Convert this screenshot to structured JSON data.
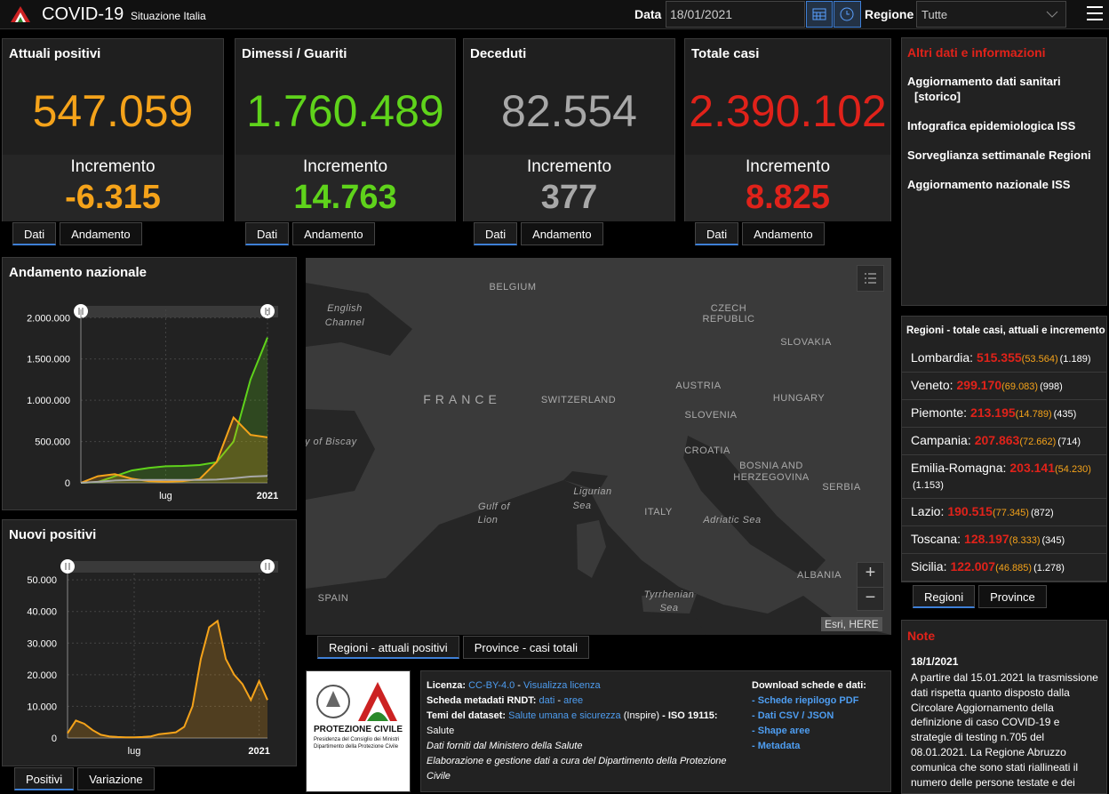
{
  "header": {
    "title": "COVID-19",
    "subtitle": "Situazione Italia",
    "date_label": "Data",
    "date": "18/01/2021",
    "region_label": "Regione",
    "region": "Tutte"
  },
  "cards": [
    {
      "title": "Attuali positivi",
      "value": "547.059",
      "increment_label": "Incremento",
      "increment": "-6.315",
      "color": "#f5a31a",
      "tabs": [
        "Dati",
        "Andamento"
      ]
    },
    {
      "title": "Dimessi / Guariti",
      "value": "1.760.489",
      "increment_label": "Incremento",
      "increment": "14.763",
      "color": "#5fd31b",
      "tabs": [
        "Dati",
        "Andamento"
      ]
    },
    {
      "title": "Deceduti",
      "value": "82.554",
      "increment_label": "Incremento",
      "increment": "377",
      "color": "#a8a8a8",
      "tabs": [
        "Dati",
        "Andamento"
      ]
    },
    {
      "title": "Totale casi",
      "value": "2.390.102",
      "increment_label": "Incremento",
      "increment": "8.825",
      "color": "#e0221a",
      "tabs": [
        "Dati",
        "Andamento"
      ]
    }
  ],
  "info": {
    "title": "Altri dati e informazioni",
    "links": [
      "Aggiornamento dati sanitari [storico]",
      "Infografica epidemiologica ISS",
      "Sorveglianza settimanale Regioni",
      "Aggiornamento nazionale ISS"
    ]
  },
  "chart_data": [
    {
      "type": "area",
      "title": "Andamento nazionale",
      "categories": [
        null,
        null,
        null,
        null,
        null,
        "lug",
        null,
        null,
        null,
        null,
        null,
        "2021"
      ],
      "series": [
        {
          "name": "Dimessi / Guariti",
          "color": "#5fd31b",
          "values": [
            0,
            10000,
            80000,
            150000,
            180000,
            200000,
            205000,
            215000,
            250000,
            500000,
            1250000,
            1760000
          ]
        },
        {
          "name": "Attuali positivi",
          "color": "#f5a31a",
          "values": [
            0,
            80000,
            105000,
            50000,
            20000,
            13000,
            20000,
            45000,
            250000,
            790000,
            580000,
            550000
          ]
        },
        {
          "name": "Deceduti",
          "color": "#a8a8a8",
          "values": [
            0,
            12000,
            28000,
            33000,
            34700,
            35100,
            35500,
            36000,
            39000,
            55000,
            75000,
            82500
          ]
        }
      ],
      "ylim": [
        0,
        2100000
      ],
      "yticks": [
        0,
        {
          "value": 500000,
          "label": "500.000"
        },
        {
          "value": 1000000,
          "label": "1.000.000"
        },
        {
          "value": 1500000,
          "label": "1.500.000"
        },
        {
          "value": 2000000,
          "label": "2.000.000"
        }
      ],
      "grid": true,
      "tabs": []
    },
    {
      "type": "area",
      "title": "Nuovi positivi",
      "categories": [
        null,
        null,
        null,
        null,
        null,
        null,
        null,
        null,
        "lug",
        null,
        null,
        null,
        null,
        null,
        null,
        null,
        null,
        null,
        null,
        null,
        null,
        null,
        null,
        "2021",
        null
      ],
      "series": [
        {
          "name": "Nuovi positivi",
          "color": "#f5a31a",
          "values": [
            1500,
            5500,
            4500,
            2500,
            1000,
            500,
            300,
            200,
            200,
            300,
            500,
            1200,
            1500,
            1800,
            3500,
            10000,
            25000,
            35000,
            37000,
            25000,
            20000,
            17000,
            12000,
            18000,
            12000
          ]
        }
      ],
      "ylim": [
        0,
        52000
      ],
      "yticks": [
        0,
        {
          "value": 10000,
          "label": "10.000"
        },
        {
          "value": 20000,
          "label": "20.000"
        },
        {
          "value": 30000,
          "label": "30.000"
        },
        {
          "value": 40000,
          "label": "40.000"
        },
        {
          "value": 50000,
          "label": "50.000"
        }
      ],
      "grid": true,
      "tabs": [
        "Positivi",
        "Variazione"
      ]
    }
  ],
  "map": {
    "labels": [
      "BELGIUM",
      "English",
      "Channel",
      "CZECH",
      "REPUBLIC",
      "SLOVAKIA",
      "FRANCE",
      "SWITZERLAND",
      "AUSTRIA",
      "HUNGARY",
      "SLOVENIA",
      "ay of Biscay",
      "CROATIA",
      "BOSNIA AND",
      "HERZEGOVINA",
      "SERBIA",
      "Ligurian",
      "Sea",
      "Gulf of",
      "Lion",
      "ITALY",
      "Adriatic Sea",
      "SPAIN",
      "ALBANIA",
      "Tyrrhenian",
      "Sea"
    ],
    "attribution": "Esri, HERE",
    "zoom": [
      "+",
      "−"
    ],
    "tabs": [
      "Regioni - attuali positivi",
      "Province - casi totali"
    ]
  },
  "regions": {
    "title": "Regioni - totale casi, attuali e incremento",
    "rows": [
      {
        "name": "Lombardia:",
        "total": "515.355",
        "active": "(53.564)",
        "increment": "(1.189)"
      },
      {
        "name": "Veneto:",
        "total": "299.170",
        "active": "(69.083)",
        "increment": "(998)"
      },
      {
        "name": "Piemonte:",
        "total": "213.195",
        "active": "(14.789)",
        "increment": "(435)"
      },
      {
        "name": "Campania:",
        "total": "207.863",
        "active": "(72.662)",
        "increment": "(714)"
      },
      {
        "name": "Emilia-Romagna:",
        "total": "203.141",
        "active": "(54.230)",
        "increment": "(1.153)"
      },
      {
        "name": "Lazio:",
        "total": "190.515",
        "active": "(77.345)",
        "increment": "(872)"
      },
      {
        "name": "Toscana:",
        "total": "128.197",
        "active": "(8.333)",
        "increment": "(345)"
      },
      {
        "name": "Sicilia:",
        "total": "122.007",
        "active": "(46.885)",
        "increment": "(1.278)"
      }
    ],
    "tabs": [
      "Regioni",
      "Province"
    ]
  },
  "logo": {
    "name": "PROTEZIONE CIVILE",
    "line1": "Presidenza del Consiglio dei Ministri",
    "line2": "Dipartimento della Protezione Civile"
  },
  "footer": {
    "lines": [
      [
        {
          "text": "Licenza:",
          "style": "bold"
        },
        {
          "text": " "
        },
        {
          "text": "CC-BY-4.0",
          "style": "link"
        },
        {
          "text": " - "
        },
        {
          "text": "Visualizza licenza",
          "style": "link"
        }
      ],
      [
        {
          "text": "Scheda metadati RNDT:",
          "style": "bold"
        },
        {
          "text": " "
        },
        {
          "text": "dati",
          "style": "link"
        },
        {
          "text": " - "
        },
        {
          "text": "aree",
          "style": "link"
        }
      ],
      [
        {
          "text": "Temi del dataset:",
          "style": "bold"
        },
        {
          "text": " "
        },
        {
          "text": "Salute umana e sicurezza",
          "style": "link"
        },
        {
          "text": " (Inspire) "
        },
        {
          "text": "- ISO 19115:",
          "style": "bold"
        },
        {
          "text": " Salute"
        }
      ],
      [
        {
          "text": "Dati forniti dal Ministero della Salute",
          "style": "italic"
        }
      ],
      [
        {
          "text": "Elaborazione e gestione dati a cura del Dipartimento della Protezione Civile",
          "style": "italic"
        }
      ]
    ],
    "download_title": "Download schede e dati:",
    "downloads": [
      "Schede riepilogo PDF",
      "Dati CSV / JSON",
      "Shape aree",
      "Metadata"
    ],
    "bullet": "- "
  },
  "note": {
    "title": "Note",
    "date": "18/1/2021",
    "text": "A partire dal 15.01.2021 la trasmissione dati rispetta quanto disposto dalla Circolare Aggiornamento della definizione di caso COVID-19 e strategie di testing n.705 del 08.01.2021. La Regione Abruzzo comunica che sono stati riallineati il numero delle persone testate e dei"
  }
}
